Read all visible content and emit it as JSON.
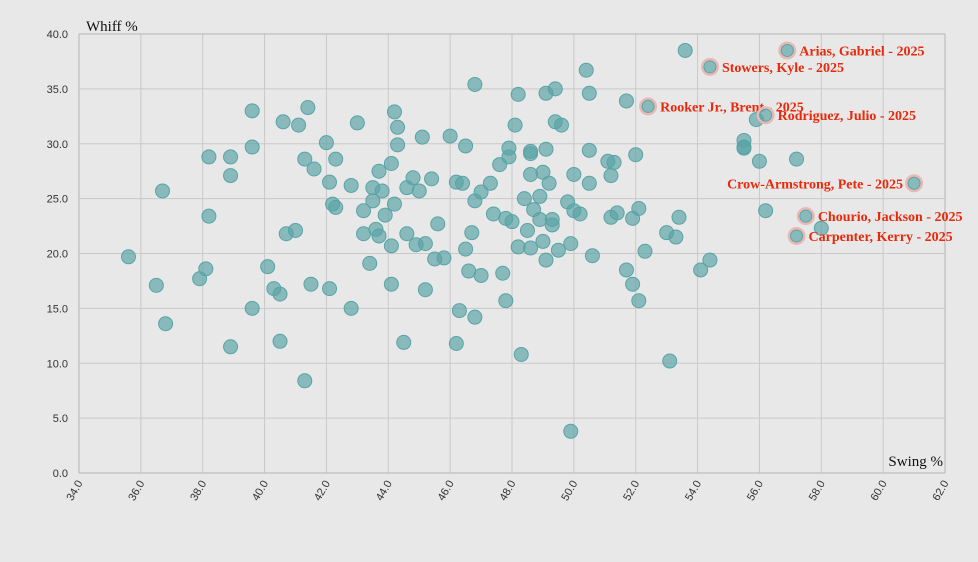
{
  "colors": {
    "point": "#5aa3a6",
    "highlight_text": "#e8290b",
    "highlight_ring": "#e8b9b4",
    "background": "#e8e8e8",
    "grid": "#c9c9c9"
  },
  "chart_data": {
    "type": "scatter",
    "title": "",
    "xlabel": "Swing %",
    "ylabel": "Whiff %",
    "xlim": [
      34,
      62
    ],
    "ylim": [
      0,
      40
    ],
    "xticks": [
      34,
      36,
      38,
      40,
      42,
      44,
      46,
      48,
      50,
      52,
      54,
      56,
      58,
      60,
      62
    ],
    "yticks": [
      0,
      5,
      10,
      15,
      20,
      25,
      30,
      35,
      40
    ],
    "grid": true,
    "legend": "none",
    "points": [
      [
        35.6,
        19.7
      ],
      [
        36.5,
        17.1
      ],
      [
        36.7,
        25.7
      ],
      [
        36.8,
        13.6
      ],
      [
        37.9,
        17.7
      ],
      [
        38.1,
        18.6
      ],
      [
        38.2,
        28.8
      ],
      [
        38.2,
        23.4
      ],
      [
        38.9,
        28.8
      ],
      [
        38.9,
        27.1
      ],
      [
        38.9,
        11.5
      ],
      [
        39.6,
        33.0
      ],
      [
        39.6,
        29.7
      ],
      [
        39.6,
        15.0
      ],
      [
        40.1,
        18.8
      ],
      [
        40.3,
        16.8
      ],
      [
        40.5,
        12.0
      ],
      [
        40.5,
        16.3
      ],
      [
        40.6,
        32.0
      ],
      [
        40.7,
        21.8
      ],
      [
        41.0,
        22.1
      ],
      [
        41.1,
        31.7
      ],
      [
        41.3,
        28.6
      ],
      [
        41.3,
        8.4
      ],
      [
        41.4,
        33.3
      ],
      [
        41.5,
        17.2
      ],
      [
        41.6,
        27.7
      ],
      [
        42.0,
        30.1
      ],
      [
        42.1,
        26.5
      ],
      [
        42.1,
        16.8
      ],
      [
        42.2,
        24.5
      ],
      [
        42.3,
        24.2
      ],
      [
        42.3,
        28.6
      ],
      [
        42.8,
        26.2
      ],
      [
        42.8,
        15.0
      ],
      [
        43.0,
        31.9
      ],
      [
        43.2,
        23.9
      ],
      [
        43.2,
        21.8
      ],
      [
        43.4,
        19.1
      ],
      [
        43.5,
        26.0
      ],
      [
        43.5,
        24.8
      ],
      [
        43.6,
        22.2
      ],
      [
        43.7,
        21.6
      ],
      [
        43.7,
        27.5
      ],
      [
        43.8,
        25.7
      ],
      [
        43.9,
        23.5
      ],
      [
        44.1,
        20.7
      ],
      [
        44.1,
        28.2
      ],
      [
        44.1,
        17.2
      ],
      [
        44.2,
        24.5
      ],
      [
        44.2,
        32.9
      ],
      [
        44.3,
        31.5
      ],
      [
        44.3,
        29.9
      ],
      [
        44.5,
        11.9
      ],
      [
        44.6,
        26.0
      ],
      [
        44.6,
        21.8
      ],
      [
        44.8,
        26.9
      ],
      [
        44.9,
        20.8
      ],
      [
        45.0,
        25.7
      ],
      [
        45.1,
        30.6
      ],
      [
        45.2,
        20.9
      ],
      [
        45.2,
        16.7
      ],
      [
        45.4,
        26.8
      ],
      [
        45.5,
        19.5
      ],
      [
        45.6,
        22.7
      ],
      [
        45.8,
        19.6
      ],
      [
        46.0,
        30.7
      ],
      [
        46.2,
        26.5
      ],
      [
        46.2,
        11.8
      ],
      [
        46.3,
        14.8
      ],
      [
        46.4,
        26.4
      ],
      [
        46.5,
        20.4
      ],
      [
        46.5,
        29.8
      ],
      [
        46.6,
        18.4
      ],
      [
        46.7,
        21.9
      ],
      [
        46.8,
        24.8
      ],
      [
        46.8,
        35.4
      ],
      [
        46.8,
        14.2
      ],
      [
        47.0,
        25.6
      ],
      [
        47.0,
        18.0
      ],
      [
        47.3,
        26.4
      ],
      [
        47.4,
        23.6
      ],
      [
        47.6,
        28.1
      ],
      [
        47.7,
        18.2
      ],
      [
        47.8,
        15.7
      ],
      [
        47.8,
        23.2
      ],
      [
        47.9,
        29.6
      ],
      [
        47.9,
        28.8
      ],
      [
        48.0,
        22.9
      ],
      [
        48.1,
        31.7
      ],
      [
        48.2,
        34.5
      ],
      [
        48.2,
        20.6
      ],
      [
        48.3,
        10.8
      ],
      [
        48.4,
        25.0
      ],
      [
        48.5,
        22.1
      ],
      [
        48.6,
        29.1
      ],
      [
        48.6,
        29.3
      ],
      [
        48.6,
        27.2
      ],
      [
        48.6,
        20.5
      ],
      [
        48.7,
        24.0
      ],
      [
        48.9,
        25.2
      ],
      [
        48.9,
        23.1
      ],
      [
        49.0,
        21.1
      ],
      [
        49.0,
        27.4
      ],
      [
        49.1,
        34.6
      ],
      [
        49.1,
        29.5
      ],
      [
        49.1,
        19.4
      ],
      [
        49.2,
        26.4
      ],
      [
        49.3,
        23.1
      ],
      [
        49.3,
        22.6
      ],
      [
        49.4,
        35.0
      ],
      [
        49.4,
        32.0
      ],
      [
        49.5,
        20.3
      ],
      [
        49.6,
        31.7
      ],
      [
        49.8,
        24.7
      ],
      [
        49.9,
        20.9
      ],
      [
        49.9,
        3.8
      ],
      [
        50.0,
        27.2
      ],
      [
        50.0,
        23.9
      ],
      [
        50.2,
        23.6
      ],
      [
        50.4,
        36.7
      ],
      [
        50.5,
        34.6
      ],
      [
        50.5,
        29.4
      ],
      [
        50.5,
        26.4
      ],
      [
        50.6,
        19.8
      ],
      [
        51.1,
        28.4
      ],
      [
        51.2,
        27.1
      ],
      [
        51.2,
        23.3
      ],
      [
        51.3,
        28.3
      ],
      [
        51.4,
        23.7
      ],
      [
        51.7,
        33.9
      ],
      [
        51.7,
        18.5
      ],
      [
        51.9,
        23.2
      ],
      [
        51.9,
        17.2
      ],
      [
        52.0,
        29.0
      ],
      [
        52.1,
        24.1
      ],
      [
        52.1,
        15.7
      ],
      [
        52.3,
        20.2
      ],
      [
        53.0,
        21.9
      ],
      [
        53.1,
        10.2
      ],
      [
        53.3,
        21.5
      ],
      [
        53.4,
        23.3
      ],
      [
        53.6,
        38.5
      ],
      [
        54.1,
        18.5
      ],
      [
        54.4,
        19.4
      ],
      [
        55.5,
        30.3
      ],
      [
        55.5,
        29.7
      ],
      [
        55.5,
        29.6
      ],
      [
        55.9,
        32.2
      ],
      [
        56.0,
        28.4
      ],
      [
        56.2,
        23.9
      ],
      [
        57.2,
        28.6
      ],
      [
        58.0,
        22.3
      ]
    ],
    "highlighted": [
      {
        "label": "Arias, Gabriel - 2025",
        "x": 56.9,
        "y": 38.5
      },
      {
        "label": "Stowers, Kyle - 2025",
        "x": 54.4,
        "y": 37.0
      },
      {
        "label": "Rooker Jr., Brent - 2025",
        "x": 52.4,
        "y": 33.4
      },
      {
        "label": "Rodriguez, Julio - 2025",
        "x": 56.2,
        "y": 32.6
      },
      {
        "label": "Crow-Armstrong, Pete - 2025",
        "x": 61.0,
        "y": 26.4
      },
      {
        "label": "Chourio, Jackson - 2025",
        "x": 57.5,
        "y": 23.4
      },
      {
        "label": "Carpenter, Kerry - 2025",
        "x": 57.2,
        "y": 21.6
      }
    ]
  }
}
